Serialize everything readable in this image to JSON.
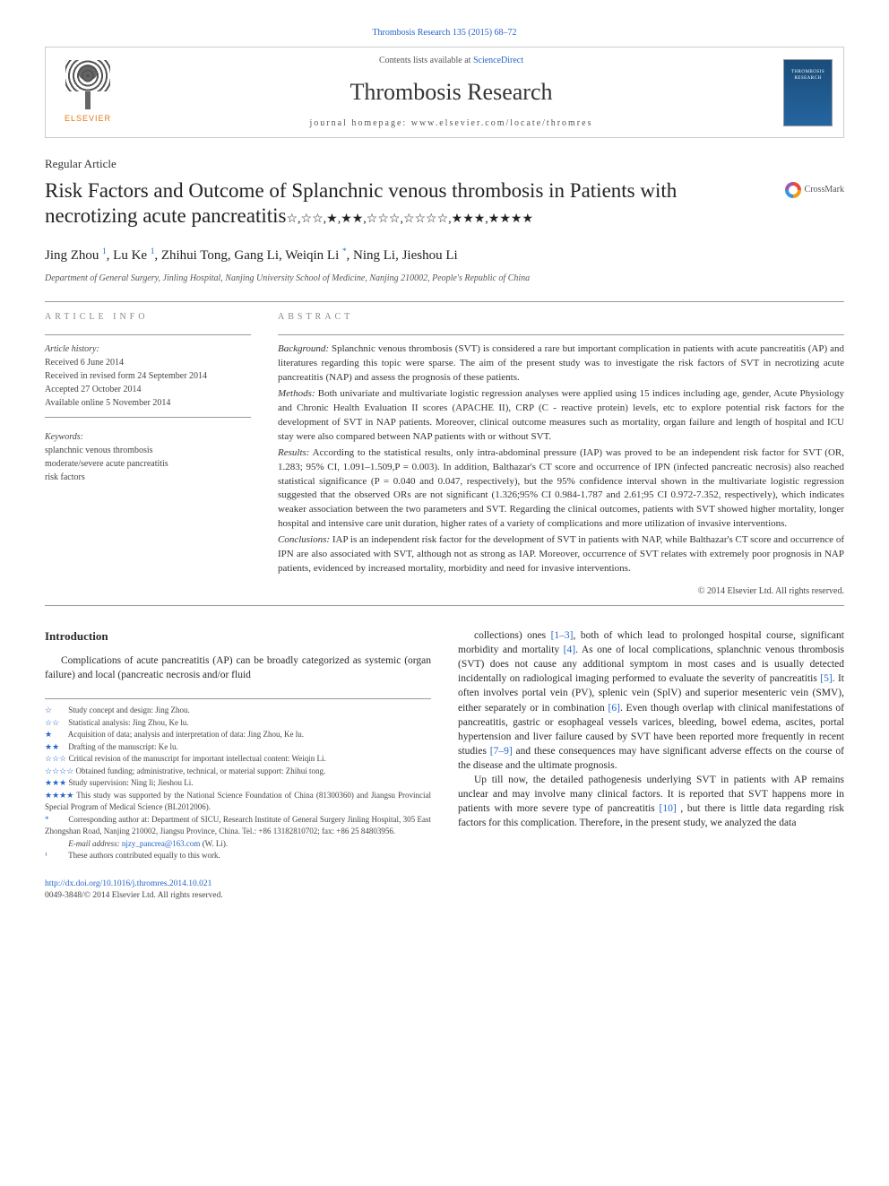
{
  "top_citation": "Thrombosis Research 135 (2015) 68–72",
  "header": {
    "contents_prefix": "Contents lists available at ",
    "contents_link": "ScienceDirect",
    "journal": "Thrombosis Research",
    "homepage_prefix": "journal homepage: ",
    "homepage": "www.elsevier.com/locate/thromres",
    "publisher": "ELSEVIER"
  },
  "article_type": "Regular Article",
  "title": "Risk Factors and Outcome of Splanchnic venous thrombosis in Patients with necrotizing acute pancreatitis",
  "title_marks": "☆,☆☆,★,★★,☆☆☆,☆☆☆☆,★★★,★★★★",
  "crossmark": "CrossMark",
  "authors_html": "Jing Zhou ¹, Lu Ke ¹, Zhihui Tong, Gang Li, Weiqin Li *, Ning Li, Jieshou Li",
  "authors": [
    {
      "name": "Jing Zhou",
      "sup": "1"
    },
    {
      "name": "Lu Ke",
      "sup": "1"
    },
    {
      "name": "Zhihui Tong",
      "sup": ""
    },
    {
      "name": "Gang Li",
      "sup": ""
    },
    {
      "name": "Weiqin Li",
      "sup": "*"
    },
    {
      "name": "Ning Li",
      "sup": ""
    },
    {
      "name": "Jieshou Li",
      "sup": ""
    }
  ],
  "affiliation": "Department of General Surgery, Jinling Hospital, Nanjing University School of Medicine, Nanjing 210002, People's Republic of China",
  "article_info": {
    "heading": "article info",
    "history_label": "Article history:",
    "received": "Received 6 June 2014",
    "revised": "Received in revised form 24 September 2014",
    "accepted": "Accepted 27 October 2014",
    "online": "Available online 5 November 2014",
    "keywords_label": "Keywords:",
    "keywords": [
      "splanchnic venous thrombosis",
      "moderate/severe acute pancreatitis",
      "risk factors"
    ]
  },
  "abstract": {
    "heading": "abstract",
    "background_label": "Background:",
    "background": " Splanchnic venous thrombosis (SVT) is considered a rare but important complication in patients with acute pancreatitis (AP) and literatures regarding this topic were sparse. The aim of the present study was to investigate the risk factors of SVT in necrotizing acute pancreatitis (NAP) and assess the prognosis of these patients.",
    "methods_label": "Methods:",
    "methods": " Both univariate and multivariate logistic regression analyses were applied using 15 indices including age, gender, Acute Physiology and Chronic Health Evaluation II scores (APACHE II), CRP (C - reactive protein) levels, etc to explore potential risk factors for the development of SVT in NAP patients. Moreover, clinical outcome measures such as mortality, organ failure and length of hospital and ICU stay were also compared between NAP patients with or without SVT.",
    "results_label": "Results:",
    "results": " According to the statistical results, only intra-abdominal pressure (IAP) was proved to be an independent risk factor for SVT (OR, 1.283; 95% CI, 1.091–1.509,P = 0.003). In addition, Balthazar's CT score and occurrence of IPN (infected pancreatic necrosis) also reached statistical significance (P = 0.040 and 0.047, respectively), but the 95% confidence interval shown in the multivariate logistic regression suggested that the observed ORs are not significant (1.326;95% CI 0.984-1.787 and 2.61;95 CI 0.972-7.352, respectively), which indicates weaker association between the two parameters and SVT. Regarding the clinical outcomes, patients with SVT showed higher mortality, longer hospital and intensive care unit duration, higher rates of a variety of complications and more utilization of invasive interventions.",
    "conclusions_label": "Conclusions:",
    "conclusions": " IAP is an independent risk factor for the development of SVT in patients with NAP, while Balthazar's CT score and occurrence of IPN are also associated with SVT, although not as strong as IAP. Moreover, occurrence of SVT relates with extremely poor prognosis in NAP patients, evidenced by increased mortality, morbidity and need for invasive interventions.",
    "copyright": "© 2014 Elsevier Ltd. All rights reserved."
  },
  "intro_heading": "Introduction",
  "intro_col1": "Complications of acute pancreatitis (AP) can be broadly categorized as systemic (organ failure) and local (pancreatic necrosis and/or fluid",
  "intro_col2_p1": "collections) ones [1–3], both of which lead to prolonged hospital course, significant morbidity and mortality [4]. As one of local complications, splanchnic venous thrombosis (SVT) does not cause any additional symptom in most cases and is usually detected incidentally on radiological imaging performed to evaluate the severity of pancreatitis [5]. It often involves portal vein (PV), splenic vein (SplV) and superior mesenteric vein (SMV), either separately or in combination [6]. Even though overlap with clinical manifestations of pancreatitis, gastric or esophageal vessels varices, bleeding, bowel edema, ascites, portal hypertension and liver failure caused by SVT have been reported more frequently in recent studies [7–9] and these consequences may have significant adverse effects on the course of the disease and the ultimate prognosis.",
  "intro_col2_p2": "Up till now, the detailed pathogenesis underlying SVT in patients with AP remains unclear and may involve many clinical factors. It is reported that SVT happens more in patients with more severe type of pancreatitis [10] , but there is little data regarding risk factors for this complication. Therefore, in the present study, we analyzed the data",
  "footnotes": [
    {
      "mark": "☆",
      "text": "Study concept and design: Jing Zhou."
    },
    {
      "mark": "☆☆",
      "text": "Statistical analysis: Jing Zhou, Ke lu."
    },
    {
      "mark": "★",
      "text": "Acquisition of data; analysis and interpretation of data: Jing Zhou, Ke lu."
    },
    {
      "mark": "★★",
      "text": "Drafting of the manuscript: Ke lu."
    },
    {
      "mark": "☆☆☆",
      "text": "Critical revision of the manuscript for important intellectual content: Weiqin Li."
    },
    {
      "mark": "☆☆☆☆",
      "text": "Obtained funding; administrative, technical, or material support: Zhihui tong."
    },
    {
      "mark": "★★★",
      "text": "Study supervision: Ning li; Jieshou Li."
    },
    {
      "mark": "★★★★",
      "text": "This study was supported by the National Science Foundation of China (81300360) and Jiangsu Provincial Special Program of Medical Science (BL2012006)."
    },
    {
      "mark": "*",
      "text": "Corresponding author at: Department of SICU, Research Institute of General Surgery Jinling Hospital, 305 East Zhongshan Road, Nanjing 210002, Jiangsu Province, China. Tel.: +86 13182810702; fax: +86 25 84803956."
    },
    {
      "mark": "",
      "text": "E-mail address: njzy_pancrea@163.com (W. Li)."
    },
    {
      "mark": "¹",
      "text": "These authors contributed equally to this work."
    }
  ],
  "footer": {
    "doi": "http://dx.doi.org/10.1016/j.thromres.2014.10.021",
    "issn": "0049-3848/© 2014 Elsevier Ltd. All rights reserved."
  },
  "colors": {
    "link": "#2565c7",
    "elsevier_orange": "#e67817",
    "text": "#2a2a2a",
    "muted": "#888"
  }
}
